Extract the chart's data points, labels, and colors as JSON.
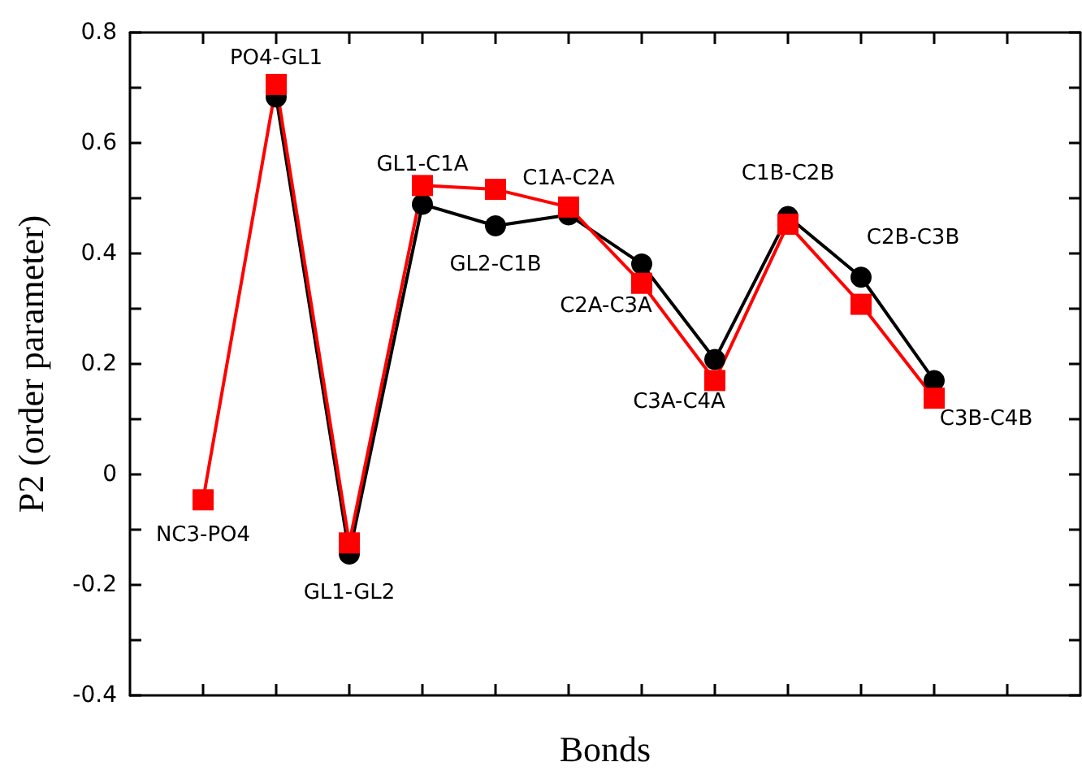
{
  "chart_data": {
    "type": "line",
    "xlabel": "Bonds",
    "ylabel": "P2 (order parameter)",
    "categories": [
      null,
      null,
      null,
      null,
      null,
      null,
      null,
      null,
      null,
      null,
      null
    ],
    "ylim": [
      -0.4,
      0.8
    ],
    "yticks": [
      -0.4,
      -0.2,
      0,
      0.2,
      0.4,
      0.6,
      0.8
    ],
    "tick_labels": "y",
    "line_style": "solid",
    "series": [
      {
        "color": "#000000",
        "marker": "circle",
        "values": [
          null,
          0.683,
          -0.144,
          0.489,
          0.45,
          0.47,
          0.381,
          0.208,
          0.467,
          0.357,
          0.17
        ]
      },
      {
        "color": "#ff0000",
        "marker": "square",
        "values": [
          -0.046,
          0.706,
          -0.124,
          0.523,
          0.516,
          0.484,
          0.346,
          0.17,
          0.453,
          0.308,
          0.138
        ]
      }
    ],
    "annotations": [
      "NC3-PO4",
      "PO4-GL1",
      "GL1-GL2",
      "GL1-C1A",
      "GL2-C1B",
      "C1A-C2A",
      "C2A-C3A",
      "C3A-C4A",
      "C1B-C2B",
      "C2B-C3B",
      "C3B-C4B"
    ]
  }
}
